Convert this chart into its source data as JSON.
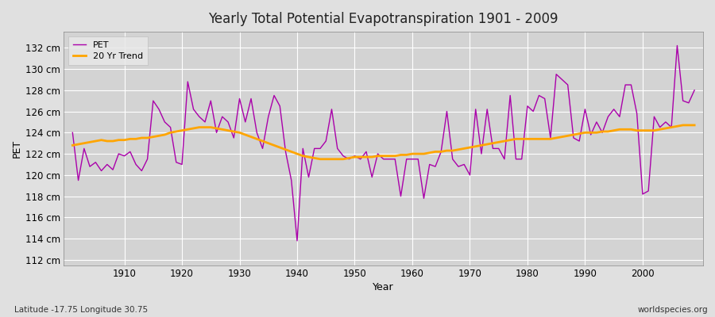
{
  "title": "Yearly Total Potential Evapotranspiration 1901 - 2009",
  "xlabel": "Year",
  "ylabel": "PET",
  "subtitle_left": "Latitude -17.75 Longitude 30.75",
  "subtitle_right": "worldspecies.org",
  "pet_color": "#AA00AA",
  "trend_color": "#FFA500",
  "bg_color": "#E0E0E0",
  "plot_bg_color": "#D3D3D3",
  "ylim": [
    111.5,
    133.5
  ],
  "yticks": [
    112,
    114,
    116,
    118,
    120,
    122,
    124,
    126,
    128,
    130,
    132
  ],
  "years": [
    1901,
    1902,
    1903,
    1904,
    1905,
    1906,
    1907,
    1908,
    1909,
    1910,
    1911,
    1912,
    1913,
    1914,
    1915,
    1916,
    1917,
    1918,
    1919,
    1920,
    1921,
    1922,
    1923,
    1924,
    1925,
    1926,
    1927,
    1928,
    1929,
    1930,
    1931,
    1932,
    1933,
    1934,
    1935,
    1936,
    1937,
    1938,
    1939,
    1940,
    1941,
    1942,
    1943,
    1944,
    1945,
    1946,
    1947,
    1948,
    1949,
    1950,
    1951,
    1952,
    1953,
    1954,
    1955,
    1956,
    1957,
    1958,
    1959,
    1960,
    1961,
    1962,
    1963,
    1964,
    1965,
    1966,
    1967,
    1968,
    1969,
    1970,
    1971,
    1972,
    1973,
    1974,
    1975,
    1976,
    1977,
    1978,
    1979,
    1980,
    1981,
    1982,
    1983,
    1984,
    1985,
    1986,
    1987,
    1988,
    1989,
    1990,
    1991,
    1992,
    1993,
    1994,
    1995,
    1996,
    1997,
    1998,
    1999,
    2000,
    2001,
    2002,
    2003,
    2004,
    2005,
    2006,
    2007,
    2008,
    2009
  ],
  "pet_values": [
    124.0,
    119.5,
    122.5,
    120.8,
    121.2,
    120.4,
    121.0,
    120.5,
    122.0,
    121.8,
    122.2,
    121.0,
    120.4,
    121.5,
    127.0,
    126.2,
    125.0,
    124.5,
    121.2,
    121.0,
    128.8,
    126.2,
    125.5,
    125.0,
    127.0,
    124.0,
    125.5,
    125.0,
    123.5,
    127.2,
    125.0,
    127.2,
    124.0,
    122.5,
    125.5,
    127.5,
    126.5,
    122.2,
    119.5,
    113.8,
    122.5,
    119.8,
    122.5,
    122.5,
    123.2,
    126.2,
    122.5,
    121.8,
    121.5,
    121.8,
    121.5,
    122.2,
    119.8,
    122.0,
    121.5,
    121.5,
    121.5,
    118.0,
    121.5,
    121.5,
    121.5,
    117.8,
    121.0,
    120.8,
    122.2,
    126.0,
    121.5,
    120.8,
    121.0,
    120.0,
    126.2,
    122.0,
    126.2,
    122.5,
    122.5,
    121.5,
    127.5,
    121.5,
    121.5,
    126.5,
    126.0,
    127.5,
    127.2,
    123.5,
    129.5,
    129.0,
    128.5,
    123.5,
    123.2,
    126.2,
    123.8,
    125.0,
    124.0,
    125.5,
    126.2,
    125.5,
    128.5,
    128.5,
    125.8,
    118.2,
    118.5,
    125.5,
    124.5,
    125.0,
    124.5,
    132.2,
    127.0,
    126.8,
    128.0
  ],
  "trend_values": [
    122.8,
    122.9,
    123.0,
    123.1,
    123.2,
    123.3,
    123.2,
    123.2,
    123.3,
    123.3,
    123.4,
    123.4,
    123.5,
    123.5,
    123.6,
    123.7,
    123.8,
    124.0,
    124.1,
    124.2,
    124.3,
    124.4,
    124.5,
    124.5,
    124.5,
    124.4,
    124.3,
    124.2,
    124.1,
    124.0,
    123.8,
    123.6,
    123.4,
    123.2,
    123.0,
    122.8,
    122.6,
    122.4,
    122.2,
    122.0,
    121.8,
    121.7,
    121.6,
    121.5,
    121.5,
    121.5,
    121.5,
    121.5,
    121.6,
    121.7,
    121.7,
    121.7,
    121.7,
    121.8,
    121.8,
    121.8,
    121.8,
    121.9,
    121.9,
    122.0,
    122.0,
    122.0,
    122.1,
    122.2,
    122.2,
    122.3,
    122.3,
    122.4,
    122.5,
    122.6,
    122.7,
    122.8,
    122.9,
    123.0,
    123.1,
    123.2,
    123.3,
    123.4,
    123.4,
    123.4,
    123.4,
    123.4,
    123.4,
    123.4,
    123.5,
    123.6,
    123.7,
    123.8,
    123.9,
    124.0,
    124.0,
    124.0,
    124.1,
    124.1,
    124.2,
    124.3,
    124.3,
    124.3,
    124.2,
    124.2,
    124.2,
    124.2,
    124.3,
    124.4,
    124.5,
    124.6,
    124.7,
    124.7,
    124.7
  ]
}
